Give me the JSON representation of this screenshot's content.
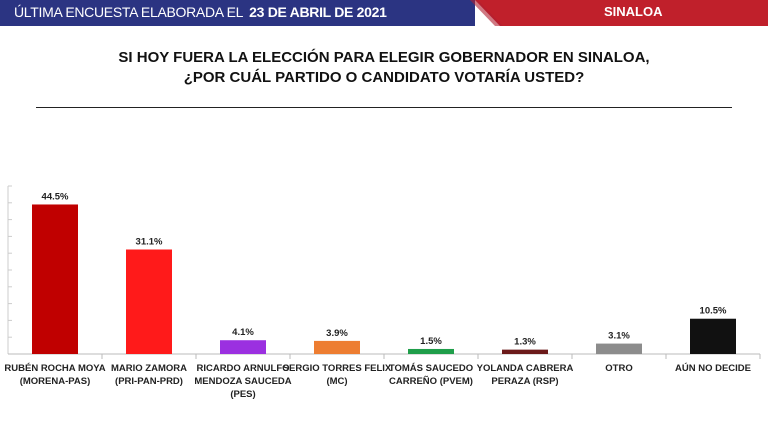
{
  "header": {
    "prefix": "ÚLTIMA ENCUESTA ELABORADA EL",
    "date": "23 DE ABRIL DE 2021",
    "region": "SINALOA",
    "colors": {
      "blue": "#2b3482",
      "red": "#c0202b"
    }
  },
  "title": {
    "line1": "SI HOY FUERA LA ELECCIÓN PARA ELEGIR GOBERNADOR EN SINALOA,",
    "line2": "¿POR CUÁL PARTIDO O CANDIDATO VOTARÍA USTED?"
  },
  "chart_data": {
    "type": "bar",
    "title": "",
    "xlabel": "",
    "ylabel": "",
    "ylim": [
      0,
      50
    ],
    "grid": true,
    "categories": [
      [
        "RUBÉN ROCHA MOYA",
        "(MORENA-PAS)"
      ],
      [
        "MARIO ZAMORA",
        "(PRI-PAN-PRD)"
      ],
      [
        "RICARDO ARNULFO",
        "MENDOZA SAUCEDA",
        "(PES)"
      ],
      [
        "SERGIO TORRES FELIX",
        "(MC)"
      ],
      [
        "TOMÁS SAUCEDO",
        "CARREÑO (PVEM)"
      ],
      [
        "YOLANDA CABRERA",
        "PERAZA (RSP)"
      ],
      [
        "OTRO"
      ],
      [
        "AÚN NO DECIDE"
      ]
    ],
    "values": [
      44.5,
      31.1,
      4.1,
      3.9,
      1.5,
      1.3,
      3.1,
      10.5
    ],
    "data_labels": [
      "44.5%",
      "31.1%",
      "4.1%",
      "3.9%",
      "1.5%",
      "1.3%",
      "3.1%",
      "10.5%"
    ],
    "colors": [
      "#c00000",
      "#ff1a1a",
      "#9b30e0",
      "#ed7d31",
      "#1f9e4a",
      "#6b1a1a",
      "#8c8c8c",
      "#111111"
    ]
  }
}
